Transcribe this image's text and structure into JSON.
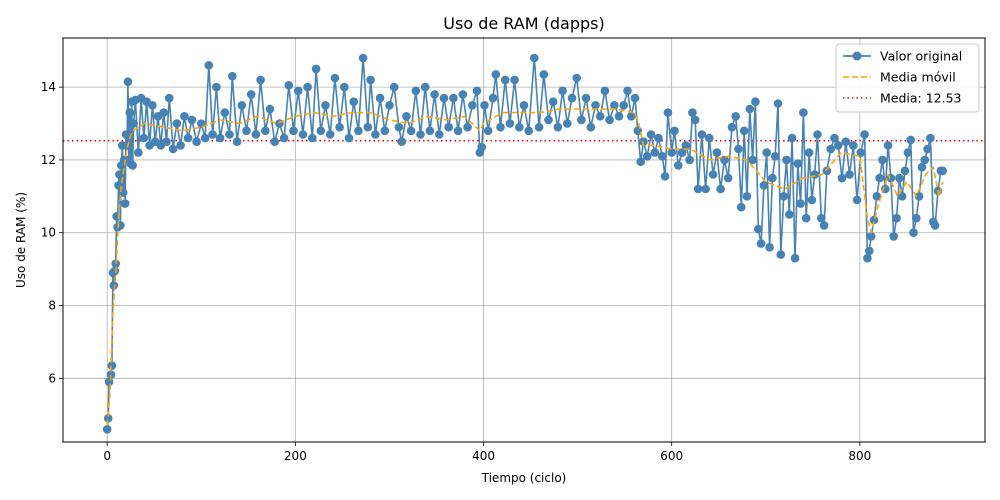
{
  "chart_data": {
    "type": "line",
    "title": "Uso de RAM (dapps)",
    "xlabel": "Tiempo (ciclo)",
    "ylabel": "Uso de RAM (%)",
    "xlim": [
      -47,
      933
    ],
    "ylim": [
      4.25,
      15.35
    ],
    "x_ticks": [
      0,
      200,
      400,
      600,
      800
    ],
    "y_ticks": [
      6,
      8,
      10,
      12,
      14
    ],
    "grid": true,
    "legend_position": "top-right",
    "series": [
      {
        "name": "Valor original",
        "style": "line-with-markers",
        "color": "#4682b4",
        "keypoints": [
          [
            0,
            4.6
          ],
          [
            1,
            4.9
          ],
          [
            2,
            5.9
          ],
          [
            4,
            6.1
          ],
          [
            5,
            6.35
          ],
          [
            6,
            8.9
          ],
          [
            7,
            8.55
          ],
          [
            8,
            8.95
          ],
          [
            9,
            9.15
          ],
          [
            10,
            10.45
          ],
          [
            11,
            10.15
          ],
          [
            12,
            11.3
          ],
          [
            13,
            11.6
          ],
          [
            14,
            10.2
          ],
          [
            15,
            11.85
          ],
          [
            16,
            12.4
          ],
          [
            17,
            11.1
          ],
          [
            18,
            12.0
          ],
          [
            19,
            10.8
          ],
          [
            20,
            12.7
          ],
          [
            21,
            12.4
          ],
          [
            22,
            14.15
          ],
          [
            23,
            12.0
          ],
          [
            24,
            13.3
          ],
          [
            25,
            11.9
          ],
          [
            26,
            13.6
          ],
          [
            27,
            11.85
          ],
          [
            28,
            13.0
          ],
          [
            30,
            13.65
          ],
          [
            33,
            12.2
          ],
          [
            36,
            13.7
          ],
          [
            39,
            12.6
          ],
          [
            42,
            13.6
          ],
          [
            45,
            12.4
          ],
          [
            48,
            13.5
          ],
          [
            51,
            12.5
          ],
          [
            54,
            13.2
          ],
          [
            57,
            12.4
          ],
          [
            60,
            13.3
          ],
          [
            63,
            12.5
          ],
          [
            66,
            13.7
          ],
          [
            70,
            12.3
          ],
          [
            74,
            13.0
          ],
          [
            78,
            12.4
          ],
          [
            82,
            13.2
          ],
          [
            86,
            12.6
          ],
          [
            90,
            13.1
          ],
          [
            95,
            12.5
          ],
          [
            100,
            13.0
          ],
          [
            104,
            12.6
          ],
          [
            108,
            14.6
          ],
          [
            112,
            12.7
          ],
          [
            116,
            14.0
          ],
          [
            120,
            12.6
          ],
          [
            125,
            13.3
          ],
          [
            130,
            12.7
          ],
          [
            133,
            14.3
          ],
          [
            138,
            12.5
          ],
          [
            143,
            13.5
          ],
          [
            148,
            12.8
          ],
          [
            153,
            13.8
          ],
          [
            158,
            12.7
          ],
          [
            163,
            14.2
          ],
          [
            168,
            12.8
          ],
          [
            173,
            13.4
          ],
          [
            178,
            12.5
          ],
          [
            183,
            13.0
          ],
          [
            188,
            12.6
          ],
          [
            193,
            14.05
          ],
          [
            198,
            12.8
          ],
          [
            203,
            13.9
          ],
          [
            208,
            12.7
          ],
          [
            213,
            14.0
          ],
          [
            218,
            12.6
          ],
          [
            222,
            14.5
          ],
          [
            227,
            12.8
          ],
          [
            232,
            13.5
          ],
          [
            237,
            12.7
          ],
          [
            242,
            14.25
          ],
          [
            247,
            12.9
          ],
          [
            252,
            14.0
          ],
          [
            257,
            12.6
          ],
          [
            262,
            13.6
          ],
          [
            267,
            12.8
          ],
          [
            272,
            14.8
          ],
          [
            277,
            12.9
          ],
          [
            280,
            14.2
          ],
          [
            285,
            12.7
          ],
          [
            290,
            13.7
          ],
          [
            295,
            12.8
          ],
          [
            300,
            13.5
          ],
          [
            305,
            14.0
          ],
          [
            310,
            12.9
          ],
          [
            313,
            12.5
          ],
          [
            318,
            13.2
          ],
          [
            323,
            12.8
          ],
          [
            328,
            13.9
          ],
          [
            333,
            12.7
          ],
          [
            338,
            14.0
          ],
          [
            343,
            12.8
          ],
          [
            348,
            13.8
          ],
          [
            353,
            12.7
          ],
          [
            358,
            13.7
          ],
          [
            363,
            12.9
          ],
          [
            368,
            13.7
          ],
          [
            373,
            12.8
          ],
          [
            378,
            13.8
          ],
          [
            383,
            12.9
          ],
          [
            388,
            13.5
          ],
          [
            393,
            13.9
          ],
          [
            396,
            12.2
          ],
          [
            398,
            12.35
          ],
          [
            401,
            13.5
          ],
          [
            405,
            12.8
          ],
          [
            410,
            13.7
          ],
          [
            413,
            14.35
          ],
          [
            418,
            12.9
          ],
          [
            423,
            14.2
          ],
          [
            428,
            13.0
          ],
          [
            433,
            14.2
          ],
          [
            438,
            12.9
          ],
          [
            443,
            13.5
          ],
          [
            448,
            12.8
          ],
          [
            454,
            14.8
          ],
          [
            459,
            12.9
          ],
          [
            464,
            14.35
          ],
          [
            469,
            13.1
          ],
          [
            474,
            13.6
          ],
          [
            479,
            12.9
          ],
          [
            484,
            13.9
          ],
          [
            489,
            13.0
          ],
          [
            494,
            13.7
          ],
          [
            499,
            14.25
          ],
          [
            504,
            13.1
          ],
          [
            509,
            13.7
          ],
          [
            514,
            12.9
          ],
          [
            519,
            13.5
          ],
          [
            524,
            13.2
          ],
          [
            529,
            13.9
          ],
          [
            534,
            13.1
          ],
          [
            539,
            13.5
          ],
          [
            544,
            13.2
          ],
          [
            549,
            13.5
          ],
          [
            553,
            13.9
          ],
          [
            557,
            13.2
          ],
          [
            561,
            13.7
          ],
          [
            564,
            12.8
          ],
          [
            567,
            11.95
          ],
          [
            570,
            12.5
          ],
          [
            574,
            12.1
          ],
          [
            578,
            12.7
          ],
          [
            582,
            12.2
          ],
          [
            586,
            12.6
          ],
          [
            590,
            12.1
          ],
          [
            593,
            11.55
          ],
          [
            596,
            13.3
          ],
          [
            600,
            12.2
          ],
          [
            603,
            12.8
          ],
          [
            607,
            11.85
          ],
          [
            611,
            12.2
          ],
          [
            615,
            12.4
          ],
          [
            619,
            12.0
          ],
          [
            622,
            13.3
          ],
          [
            625,
            13.1
          ],
          [
            628,
            11.2
          ],
          [
            632,
            12.7
          ],
          [
            636,
            11.2
          ],
          [
            640,
            12.6
          ],
          [
            644,
            11.6
          ],
          [
            648,
            12.2
          ],
          [
            652,
            11.2
          ],
          [
            656,
            12.0
          ],
          [
            660,
            11.5
          ],
          [
            664,
            12.9
          ],
          [
            668,
            13.2
          ],
          [
            671,
            12.3
          ],
          [
            674,
            10.7
          ],
          [
            677,
            12.8
          ],
          [
            680,
            11.0
          ],
          [
            683,
            13.4
          ],
          [
            686,
            12.0
          ],
          [
            689,
            13.6
          ],
          [
            692,
            10.1
          ],
          [
            695,
            9.7
          ],
          [
            698,
            11.3
          ],
          [
            701,
            12.2
          ],
          [
            704,
            9.6
          ],
          [
            707,
            11.5
          ],
          [
            710,
            12.1
          ],
          [
            713,
            13.55
          ],
          [
            716,
            9.4
          ],
          [
            719,
            11.0
          ],
          [
            722,
            12.0
          ],
          [
            725,
            10.5
          ],
          [
            728,
            12.6
          ],
          [
            731,
            9.3
          ],
          [
            734,
            11.9
          ],
          [
            737,
            10.8
          ],
          [
            740,
            13.3
          ],
          [
            743,
            10.4
          ],
          [
            746,
            12.2
          ],
          [
            749,
            10.9
          ],
          [
            752,
            11.6
          ],
          [
            755,
            12.7
          ],
          [
            759,
            10.4
          ],
          [
            762,
            10.2
          ],
          [
            765,
            11.7
          ],
          [
            769,
            12.3
          ],
          [
            773,
            12.6
          ],
          [
            777,
            12.4
          ],
          [
            781,
            11.5
          ],
          [
            785,
            12.5
          ],
          [
            789,
            11.6
          ],
          [
            793,
            12.4
          ],
          [
            797,
            10.9
          ],
          [
            801,
            12.2
          ],
          [
            805,
            12.7
          ],
          [
            808,
            9.3
          ],
          [
            810,
            9.5
          ],
          [
            812,
            9.9
          ],
          [
            815,
            10.35
          ],
          [
            818,
            11.0
          ],
          [
            821,
            11.5
          ],
          [
            824,
            12.0
          ],
          [
            827,
            11.2
          ],
          [
            830,
            12.4
          ],
          [
            833,
            11.5
          ],
          [
            836,
            9.9
          ],
          [
            839,
            10.4
          ],
          [
            842,
            11.5
          ],
          [
            845,
            11.0
          ],
          [
            848,
            11.7
          ],
          [
            851,
            12.2
          ],
          [
            854,
            12.55
          ],
          [
            857,
            10.0
          ],
          [
            860,
            10.4
          ],
          [
            863,
            11.0
          ],
          [
            866,
            11.8
          ],
          [
            869,
            12.0
          ],
          [
            872,
            12.3
          ],
          [
            875,
            12.6
          ],
          [
            878,
            10.3
          ],
          [
            880,
            10.2
          ],
          [
            883,
            11.15
          ],
          [
            886,
            11.7
          ],
          [
            888,
            11.7
          ]
        ]
      },
      {
        "name": "Media móvil",
        "style": "dashed",
        "color": "#ffa500",
        "keypoints": [
          [
            0,
            4.7
          ],
          [
            3,
            5.6
          ],
          [
            6,
            7.8
          ],
          [
            9,
            8.9
          ],
          [
            12,
            10.3
          ],
          [
            15,
            11.3
          ],
          [
            18,
            11.8
          ],
          [
            21,
            12.3
          ],
          [
            24,
            12.6
          ],
          [
            27,
            12.8
          ],
          [
            40,
            13.0
          ],
          [
            60,
            12.9
          ],
          [
            80,
            12.8
          ],
          [
            100,
            12.9
          ],
          [
            120,
            13.1
          ],
          [
            140,
            13.0
          ],
          [
            160,
            13.2
          ],
          [
            180,
            13.0
          ],
          [
            200,
            13.2
          ],
          [
            220,
            13.3
          ],
          [
            240,
            13.2
          ],
          [
            260,
            13.3
          ],
          [
            280,
            13.3
          ],
          [
            300,
            13.1
          ],
          [
            320,
            13.0
          ],
          [
            340,
            13.2
          ],
          [
            360,
            13.1
          ],
          [
            380,
            13.2
          ],
          [
            396,
            12.8
          ],
          [
            400,
            13.0
          ],
          [
            420,
            13.3
          ],
          [
            440,
            13.3
          ],
          [
            460,
            13.3
          ],
          [
            480,
            13.4
          ],
          [
            500,
            13.4
          ],
          [
            520,
            13.4
          ],
          [
            540,
            13.4
          ],
          [
            560,
            13.3
          ],
          [
            565,
            13.0
          ],
          [
            570,
            12.4
          ],
          [
            580,
            12.4
          ],
          [
            600,
            12.3
          ],
          [
            620,
            12.3
          ],
          [
            640,
            12.0
          ],
          [
            660,
            12.1
          ],
          [
            680,
            12.0
          ],
          [
            700,
            11.4
          ],
          [
            720,
            11.2
          ],
          [
            740,
            11.5
          ],
          [
            760,
            11.6
          ],
          [
            780,
            12.2
          ],
          [
            800,
            12.1
          ],
          [
            808,
            10.4
          ],
          [
            812,
            10.0
          ],
          [
            820,
            10.8
          ],
          [
            830,
            11.6
          ],
          [
            840,
            11.0
          ],
          [
            850,
            11.4
          ],
          [
            860,
            11.0
          ],
          [
            870,
            11.6
          ],
          [
            878,
            11.8
          ],
          [
            884,
            11.0
          ],
          [
            888,
            11.4
          ]
        ]
      },
      {
        "name": "Media: 12.53",
        "style": "dotted-horizontal",
        "color": "#ff0000",
        "value": 12.53
      }
    ]
  }
}
